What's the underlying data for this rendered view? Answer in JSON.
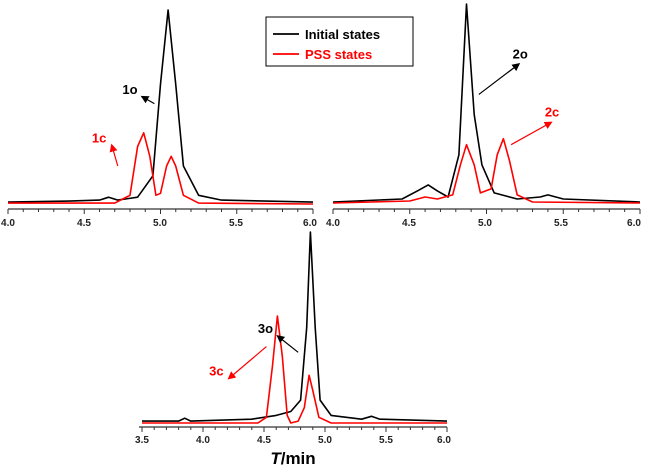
{
  "chart_data": [
    {
      "type": "line",
      "panel": "1",
      "xlim": [
        4.0,
        6.0
      ],
      "ylim": [
        0,
        1
      ],
      "x_ticks": [
        "4.0",
        "4.5",
        "5.0",
        "5.5",
        "6.0"
      ],
      "grid": false,
      "series": [
        {
          "name": "Initial states",
          "color": "#000000",
          "points": [
            [
              4.0,
              0.015
            ],
            [
              4.4,
              0.02
            ],
            [
              4.6,
              0.025
            ],
            [
              4.66,
              0.04
            ],
            [
              4.72,
              0.025
            ],
            [
              4.85,
              0.04
            ],
            [
              4.95,
              0.15
            ],
            [
              5.0,
              0.62
            ],
            [
              5.05,
              1.0
            ],
            [
              5.1,
              0.62
            ],
            [
              5.15,
              0.2
            ],
            [
              5.25,
              0.05
            ],
            [
              5.4,
              0.025
            ],
            [
              6.0,
              0.015
            ]
          ]
        },
        {
          "name": "PSS states",
          "color": "#ff0000",
          "points": [
            [
              4.0,
              0.01
            ],
            [
              4.7,
              0.01
            ],
            [
              4.8,
              0.05
            ],
            [
              4.85,
              0.3
            ],
            [
              4.89,
              0.37
            ],
            [
              4.93,
              0.25
            ],
            [
              4.97,
              0.05
            ],
            [
              5.0,
              0.06
            ],
            [
              5.04,
              0.2
            ],
            [
              5.07,
              0.25
            ],
            [
              5.1,
              0.2
            ],
            [
              5.15,
              0.05
            ],
            [
              5.25,
              0.01
            ],
            [
              6.0,
              0.005
            ]
          ]
        }
      ],
      "annotations": [
        {
          "text": "1o",
          "color": "#000000",
          "x": 4.75,
          "y": 0.57,
          "arrow_to": [
            4.96,
            0.52
          ]
        },
        {
          "text": "1c",
          "color": "#ff0000",
          "x": 4.55,
          "y": 0.32,
          "arrow_to": [
            4.72,
            0.2
          ]
        }
      ]
    },
    {
      "type": "line",
      "panel": "2",
      "xlim": [
        4.0,
        6.0
      ],
      "ylim": [
        0,
        1
      ],
      "x_ticks": [
        "4.0",
        "4.5",
        "5.0",
        "5.5",
        "6.0"
      ],
      "grid": false,
      "series": [
        {
          "name": "Initial states",
          "color": "#000000",
          "points": [
            [
              4.0,
              0.015
            ],
            [
              4.45,
              0.03
            ],
            [
              4.55,
              0.07
            ],
            [
              4.62,
              0.1
            ],
            [
              4.68,
              0.07
            ],
            [
              4.75,
              0.04
            ],
            [
              4.82,
              0.25
            ],
            [
              4.87,
              1.0
            ],
            [
              4.92,
              0.45
            ],
            [
              4.97,
              0.2
            ],
            [
              5.05,
              0.06
            ],
            [
              5.2,
              0.03
            ],
            [
              5.35,
              0.04
            ],
            [
              5.4,
              0.05
            ],
            [
              5.5,
              0.03
            ],
            [
              6.0,
              0.015
            ]
          ]
        },
        {
          "name": "PSS states",
          "color": "#ff0000",
          "points": [
            [
              4.0,
              0.01
            ],
            [
              4.5,
              0.02
            ],
            [
              4.6,
              0.04
            ],
            [
              4.68,
              0.03
            ],
            [
              4.78,
              0.05
            ],
            [
              4.83,
              0.2
            ],
            [
              4.87,
              0.3
            ],
            [
              4.92,
              0.2
            ],
            [
              4.96,
              0.06
            ],
            [
              5.03,
              0.08
            ],
            [
              5.07,
              0.25
            ],
            [
              5.11,
              0.33
            ],
            [
              5.15,
              0.22
            ],
            [
              5.2,
              0.05
            ],
            [
              5.3,
              0.015
            ],
            [
              6.0,
              0.01
            ]
          ]
        }
      ],
      "annotations": [
        {
          "text": "2o",
          "color": "#000000",
          "x": 5.17,
          "y": 0.73,
          "arrow_to": [
            4.95,
            0.55
          ]
        },
        {
          "text": "2c",
          "color": "#ff0000",
          "x": 5.38,
          "y": 0.44,
          "arrow_to": [
            5.16,
            0.3
          ]
        }
      ]
    },
    {
      "type": "line",
      "panel": "3",
      "xlim": [
        3.5,
        6.0
      ],
      "ylim": [
        0,
        1
      ],
      "x_ticks": [
        "3.5",
        "4.0",
        "4.5",
        "5.0",
        "5.5",
        "6.0"
      ],
      "xlabel": "T/min",
      "grid": false,
      "series": [
        {
          "name": "Initial states",
          "color": "#000000",
          "points": [
            [
              3.5,
              0.01
            ],
            [
              3.8,
              0.01
            ],
            [
              3.85,
              0.025
            ],
            [
              3.9,
              0.01
            ],
            [
              4.4,
              0.02
            ],
            [
              4.6,
              0.04
            ],
            [
              4.72,
              0.06
            ],
            [
              4.8,
              0.12
            ],
            [
              4.85,
              0.5
            ],
            [
              4.88,
              1.0
            ],
            [
              4.92,
              0.5
            ],
            [
              4.96,
              0.12
            ],
            [
              5.05,
              0.04
            ],
            [
              5.3,
              0.02
            ],
            [
              5.38,
              0.035
            ],
            [
              5.45,
              0.02
            ],
            [
              6.0,
              0.01
            ]
          ]
        },
        {
          "name": "PSS states",
          "color": "#ff0000",
          "points": [
            [
              3.5,
              0.0
            ],
            [
              4.45,
              0.0
            ],
            [
              4.52,
              0.03
            ],
            [
              4.57,
              0.3
            ],
            [
              4.61,
              0.56
            ],
            [
              4.65,
              0.35
            ],
            [
              4.69,
              0.04
            ],
            [
              4.72,
              0.0
            ],
            [
              4.78,
              0.01
            ],
            [
              4.83,
              0.08
            ],
            [
              4.87,
              0.25
            ],
            [
              4.9,
              0.17
            ],
            [
              4.95,
              0.03
            ],
            [
              5.05,
              0.0
            ],
            [
              6.0,
              0.0
            ]
          ]
        }
      ],
      "annotations": [
        {
          "text": "3o",
          "color": "#000000",
          "x": 4.45,
          "y": 0.47,
          "arrow_to": [
            4.78,
            0.37
          ]
        },
        {
          "text": "3c",
          "color": "#ff0000",
          "x": 4.05,
          "y": 0.25,
          "arrow_to": [
            4.52,
            0.4
          ]
        }
      ]
    }
  ],
  "legend": {
    "placement": "top-center",
    "items": [
      {
        "label": "Initial states",
        "color": "#000000"
      },
      {
        "label": "PSS states",
        "color": "#ff0000"
      }
    ]
  },
  "xlabel": {
    "italic": "T",
    "rest": "/min"
  }
}
